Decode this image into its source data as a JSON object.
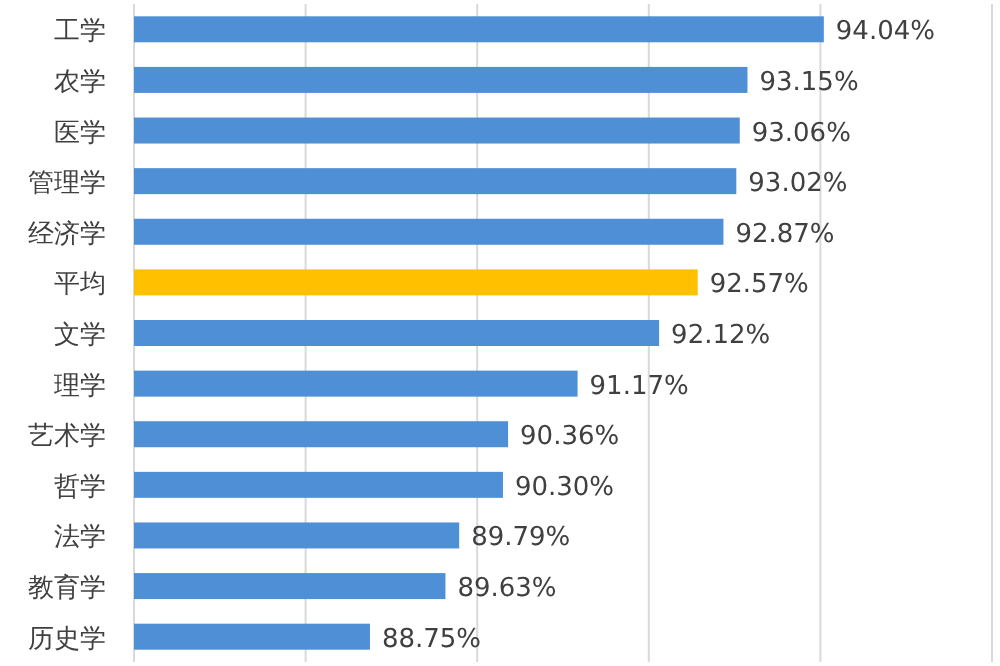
{
  "chart_data": {
    "type": "bar",
    "orientation": "horizontal",
    "categories": [
      "工学",
      "农学",
      "医学",
      "管理学",
      "经济学",
      "平均",
      "文学",
      "理学",
      "艺术学",
      "哲学",
      "法学",
      "教育学",
      "历史学"
    ],
    "values": [
      94.04,
      93.15,
      93.06,
      93.02,
      92.87,
      92.57,
      92.12,
      91.17,
      90.36,
      90.3,
      89.79,
      89.63,
      88.75
    ],
    "colors": [
      "#4f8fd6",
      "#4f8fd6",
      "#4f8fd6",
      "#4f8fd6",
      "#4f8fd6",
      "#ffc000",
      "#4f8fd6",
      "#4f8fd6",
      "#4f8fd6",
      "#4f8fd6",
      "#4f8fd6",
      "#4f8fd6",
      "#4f8fd6"
    ],
    "value_labels": [
      "94.04%",
      "93.15%",
      "93.06%",
      "93.02%",
      "92.87%",
      "92.57%",
      "92.12%",
      "91.17%",
      "90.36%",
      "90.30%",
      "89.79%",
      "89.63%",
      "88.75%"
    ],
    "xlim": [
      86,
      96
    ],
    "xticks": [
      {
        "value": 86,
        "label": null
      },
      {
        "value": 88,
        "label": null
      },
      {
        "value": 90,
        "label": null
      },
      {
        "value": 92,
        "label": null
      },
      {
        "value": 94,
        "label": null
      },
      {
        "value": 96,
        "label": null
      }
    ],
    "grid": "x",
    "tick_labels": "y"
  }
}
